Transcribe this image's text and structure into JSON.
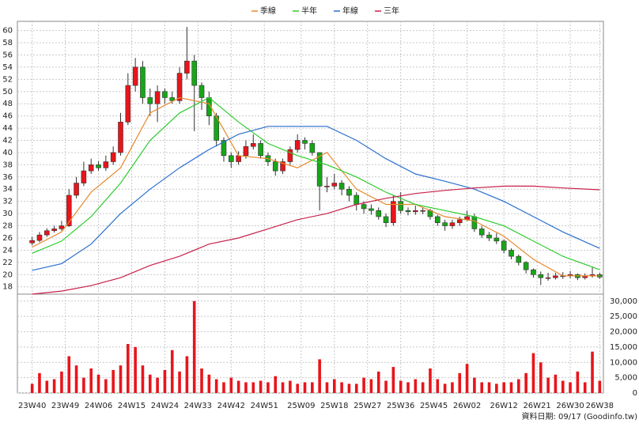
{
  "chart_data": {
    "type": "candlestick",
    "legend": "top",
    "grid": true,
    "footer": "資料日期: 09/17 (Goodinfo.tw)",
    "xlim": [
      -4,
      155
    ],
    "xticks": [
      {
        "value": 0,
        "label": "23W40"
      },
      {
        "value": 9,
        "label": "23W49"
      },
      {
        "value": 18,
        "label": "24W06"
      },
      {
        "value": 27,
        "label": "24W15"
      },
      {
        "value": 36,
        "label": "24W24"
      },
      {
        "value": 45,
        "label": "24W33"
      },
      {
        "value": 54,
        "label": "24W42"
      },
      {
        "value": 63,
        "label": "24W51"
      },
      {
        "value": 73,
        "label": "25W09"
      },
      {
        "value": 82,
        "label": "25W18"
      },
      {
        "value": 91,
        "label": "25W27"
      },
      {
        "value": 100,
        "label": "25W36"
      },
      {
        "value": 109,
        "label": "25W45"
      },
      {
        "value": 118,
        "label": "26W02"
      },
      {
        "value": 128,
        "label": "26W12"
      },
      {
        "value": 137,
        "label": "26W21"
      },
      {
        "value": 146,
        "label": "26W30"
      },
      {
        "value": 154,
        "label": "26W38"
      }
    ],
    "ylim": [
      16.8,
      61.5
    ],
    "yticks": [
      18,
      20,
      22,
      24,
      26,
      28,
      30,
      32,
      34,
      36,
      38,
      40,
      42,
      44,
      46,
      48,
      50,
      52,
      54,
      56,
      58,
      60
    ],
    "up_color": "#e8151b",
    "down_color": "#17a617",
    "candles": {
      "x": [
        0,
        2,
        4,
        6,
        8,
        10,
        12,
        14,
        16,
        18,
        20,
        22,
        24,
        26,
        28,
        30,
        32,
        34,
        36,
        38,
        40,
        42,
        44,
        46,
        48,
        50,
        52,
        54,
        56,
        58,
        60,
        62,
        64,
        66,
        68,
        70,
        72,
        74,
        76,
        78,
        80,
        82,
        84,
        86,
        88,
        90,
        92,
        94,
        96,
        98,
        100,
        102,
        104,
        106,
        108,
        110,
        112,
        114,
        116,
        118,
        120,
        122,
        124,
        126,
        128,
        130,
        132,
        134,
        136,
        138,
        140,
        142,
        144,
        146,
        148,
        150,
        152,
        154
      ],
      "open": [
        25.2,
        25.6,
        26.5,
        27.2,
        27.5,
        28,
        33,
        35,
        37,
        38,
        37.5,
        38.5,
        40,
        45,
        51,
        54,
        49,
        48,
        50,
        49,
        48.5,
        53,
        55,
        51,
        49,
        46,
        42,
        39.5,
        38.5,
        39.5,
        41,
        41.5,
        39.5,
        38.5,
        37,
        38.5,
        40.5,
        42,
        41.5,
        40,
        34.5,
        34.5,
        35,
        34,
        33,
        31.5,
        30.8,
        30.5,
        29.5,
        28.5,
        32,
        30.5,
        30.3,
        30.5,
        30.5,
        29.5,
        28.5,
        28,
        28.5,
        29,
        29.5,
        27.5,
        26.5,
        26,
        25.5,
        24,
        23,
        22,
        20.8,
        20,
        19.5,
        19.5,
        19.8,
        19.8,
        20,
        19.5,
        19.8,
        20
      ],
      "high": [
        26.2,
        27,
        27.6,
        28,
        28.8,
        34,
        36,
        38.5,
        39,
        38.6,
        39.5,
        41,
        46.5,
        53,
        55.5,
        55,
        50.5,
        51,
        50.5,
        50,
        54,
        60.6,
        56,
        51.5,
        50,
        46.5,
        42.5,
        40,
        40.2,
        42,
        43,
        42,
        40,
        39,
        39,
        41,
        43,
        42.5,
        42,
        40,
        36,
        36.5,
        35.5,
        34.5,
        33.5,
        32,
        31.5,
        31,
        30,
        33,
        33.5,
        31,
        31.3,
        31,
        30.8,
        29.8,
        29,
        29,
        29.5,
        30.5,
        30,
        28,
        27,
        26.8,
        25.8,
        24.3,
        23.3,
        22.2,
        21,
        20.5,
        20.3,
        20.3,
        20.4,
        20.6,
        20.2,
        20.2,
        21.3,
        20.3
      ],
      "low": [
        24.8,
        25.3,
        26.2,
        26.9,
        27.2,
        27.8,
        32.5,
        34.5,
        36.5,
        37,
        37,
        38,
        39.5,
        44.5,
        50,
        48,
        46,
        45,
        48,
        48,
        48,
        52,
        43.5,
        47,
        44.5,
        41,
        38.5,
        37.5,
        38,
        39,
        40.5,
        39,
        37.8,
        36.2,
        36.5,
        38,
        40,
        40.5,
        39.5,
        30.5,
        33.5,
        34,
        33,
        32,
        30.5,
        30,
        29.8,
        29,
        27.8,
        28,
        30,
        29.7,
        29.8,
        29.9,
        29,
        28,
        27.2,
        27.5,
        28,
        28.8,
        27,
        26,
        25.5,
        25,
        23.5,
        22.5,
        21.5,
        20.2,
        19.5,
        18.3,
        19,
        19.2,
        19.3,
        19.4,
        19.1,
        19.2,
        19.5,
        19.3
      ],
      "close": [
        25.6,
        26.5,
        27.2,
        27.5,
        28,
        33,
        35,
        37,
        38,
        37.5,
        38.5,
        40,
        45,
        51,
        54,
        49,
        48,
        50,
        49,
        48.5,
        53,
        55,
        51,
        49,
        46,
        42,
        39.5,
        38.5,
        39.5,
        41,
        41.5,
        39.5,
        38.5,
        37,
        38.5,
        40.5,
        42,
        41.5,
        40,
        34.5,
        34.5,
        35,
        34,
        33,
        31.5,
        30.8,
        30.5,
        29.5,
        28.5,
        32,
        30.5,
        30.3,
        30.5,
        30.5,
        29.5,
        28.5,
        28,
        28.5,
        29,
        29.5,
        27.5,
        26.5,
        26,
        25.5,
        24,
        23,
        22,
        20.8,
        20,
        19.5,
        19.5,
        19.8,
        19.8,
        20,
        19.5,
        19.8,
        20,
        19.6
      ]
    },
    "moving_averages": [
      {
        "name": "季線",
        "color": "#e8892c",
        "x": [
          0,
          8,
          16,
          24,
          32,
          40,
          48,
          56,
          64,
          72,
          80,
          88,
          96,
          104,
          112,
          120,
          128,
          136,
          144,
          154
        ],
        "values": [
          24.5,
          27,
          33.5,
          37.5,
          46.5,
          49,
          48,
          39.5,
          39,
          37.5,
          40,
          34,
          31.5,
          31.5,
          29.5,
          28.8,
          26.3,
          22.5,
          19.8,
          19.8
        ]
      },
      {
        "name": "半年",
        "color": "#2ecc2e",
        "x": [
          0,
          8,
          16,
          24,
          32,
          40,
          48,
          56,
          64,
          72,
          80,
          88,
          96,
          104,
          112,
          120,
          128,
          136,
          144,
          154
        ],
        "values": [
          23.5,
          25.5,
          29.5,
          35,
          42,
          46.5,
          49,
          45,
          41.5,
          39.5,
          38,
          36,
          33.5,
          31.5,
          30.5,
          29.5,
          28,
          25.5,
          23,
          20.8
        ]
      },
      {
        "name": "年線",
        "color": "#2a6fd0",
        "x": [
          0,
          8,
          16,
          24,
          32,
          40,
          48,
          56,
          64,
          72,
          80,
          88,
          96,
          104,
          112,
          120,
          128,
          136,
          144,
          154
        ],
        "values": [
          20.7,
          21.8,
          25,
          30,
          34,
          37.5,
          40.5,
          43,
          44.3,
          44.3,
          44.3,
          42,
          39,
          36.5,
          35.3,
          34,
          32,
          29.5,
          27,
          24.3
        ]
      },
      {
        "name": "三年",
        "color": "#c8204a",
        "x": [
          0,
          8,
          16,
          24,
          32,
          40,
          48,
          56,
          64,
          72,
          80,
          88,
          96,
          104,
          112,
          120,
          128,
          136,
          144,
          154
        ],
        "values": [
          16.8,
          17.3,
          18.2,
          19.5,
          21.5,
          23,
          25,
          26,
          27.5,
          29,
          30,
          31.5,
          32.5,
          33.3,
          33.8,
          34.2,
          34.5,
          34.5,
          34.2,
          33.9
        ]
      }
    ],
    "volume": {
      "color": "#e8151b",
      "ylim": [
        0,
        32000
      ],
      "yticks": [
        {
          "value": 0,
          "label": "0"
        },
        {
          "value": 5000,
          "label": "5,000"
        },
        {
          "value": 10000,
          "label": "10,000"
        },
        {
          "value": 15000,
          "label": "15,000"
        },
        {
          "value": 20000,
          "label": "20,000"
        },
        {
          "value": 25000,
          "label": "25,000"
        },
        {
          "value": 30000,
          "label": "30,000"
        }
      ],
      "values": [
        3000,
        6500,
        4000,
        4500,
        7000,
        12000,
        9000,
        5000,
        8000,
        6000,
        4500,
        7500,
        9000,
        16000,
        15000,
        9000,
        6000,
        5000,
        7500,
        14000,
        7000,
        12000,
        30000,
        8000,
        6000,
        4500,
        3500,
        5000,
        4000,
        3500,
        3500,
        4000,
        3500,
        5500,
        3500,
        4000,
        3000,
        3500,
        3500,
        11000,
        3500,
        4500,
        3500,
        3000,
        3000,
        5000,
        4500,
        7000,
        4000,
        8500,
        4000,
        3500,
        4500,
        3500,
        8000,
        4500,
        3000,
        3500,
        6500,
        9500,
        5000,
        3500,
        3500,
        3000,
        3500,
        3500,
        4500,
        6500,
        13000,
        10000,
        5000,
        6000,
        4000,
        3500,
        7000,
        3500,
        13500,
        4000
      ]
    }
  }
}
